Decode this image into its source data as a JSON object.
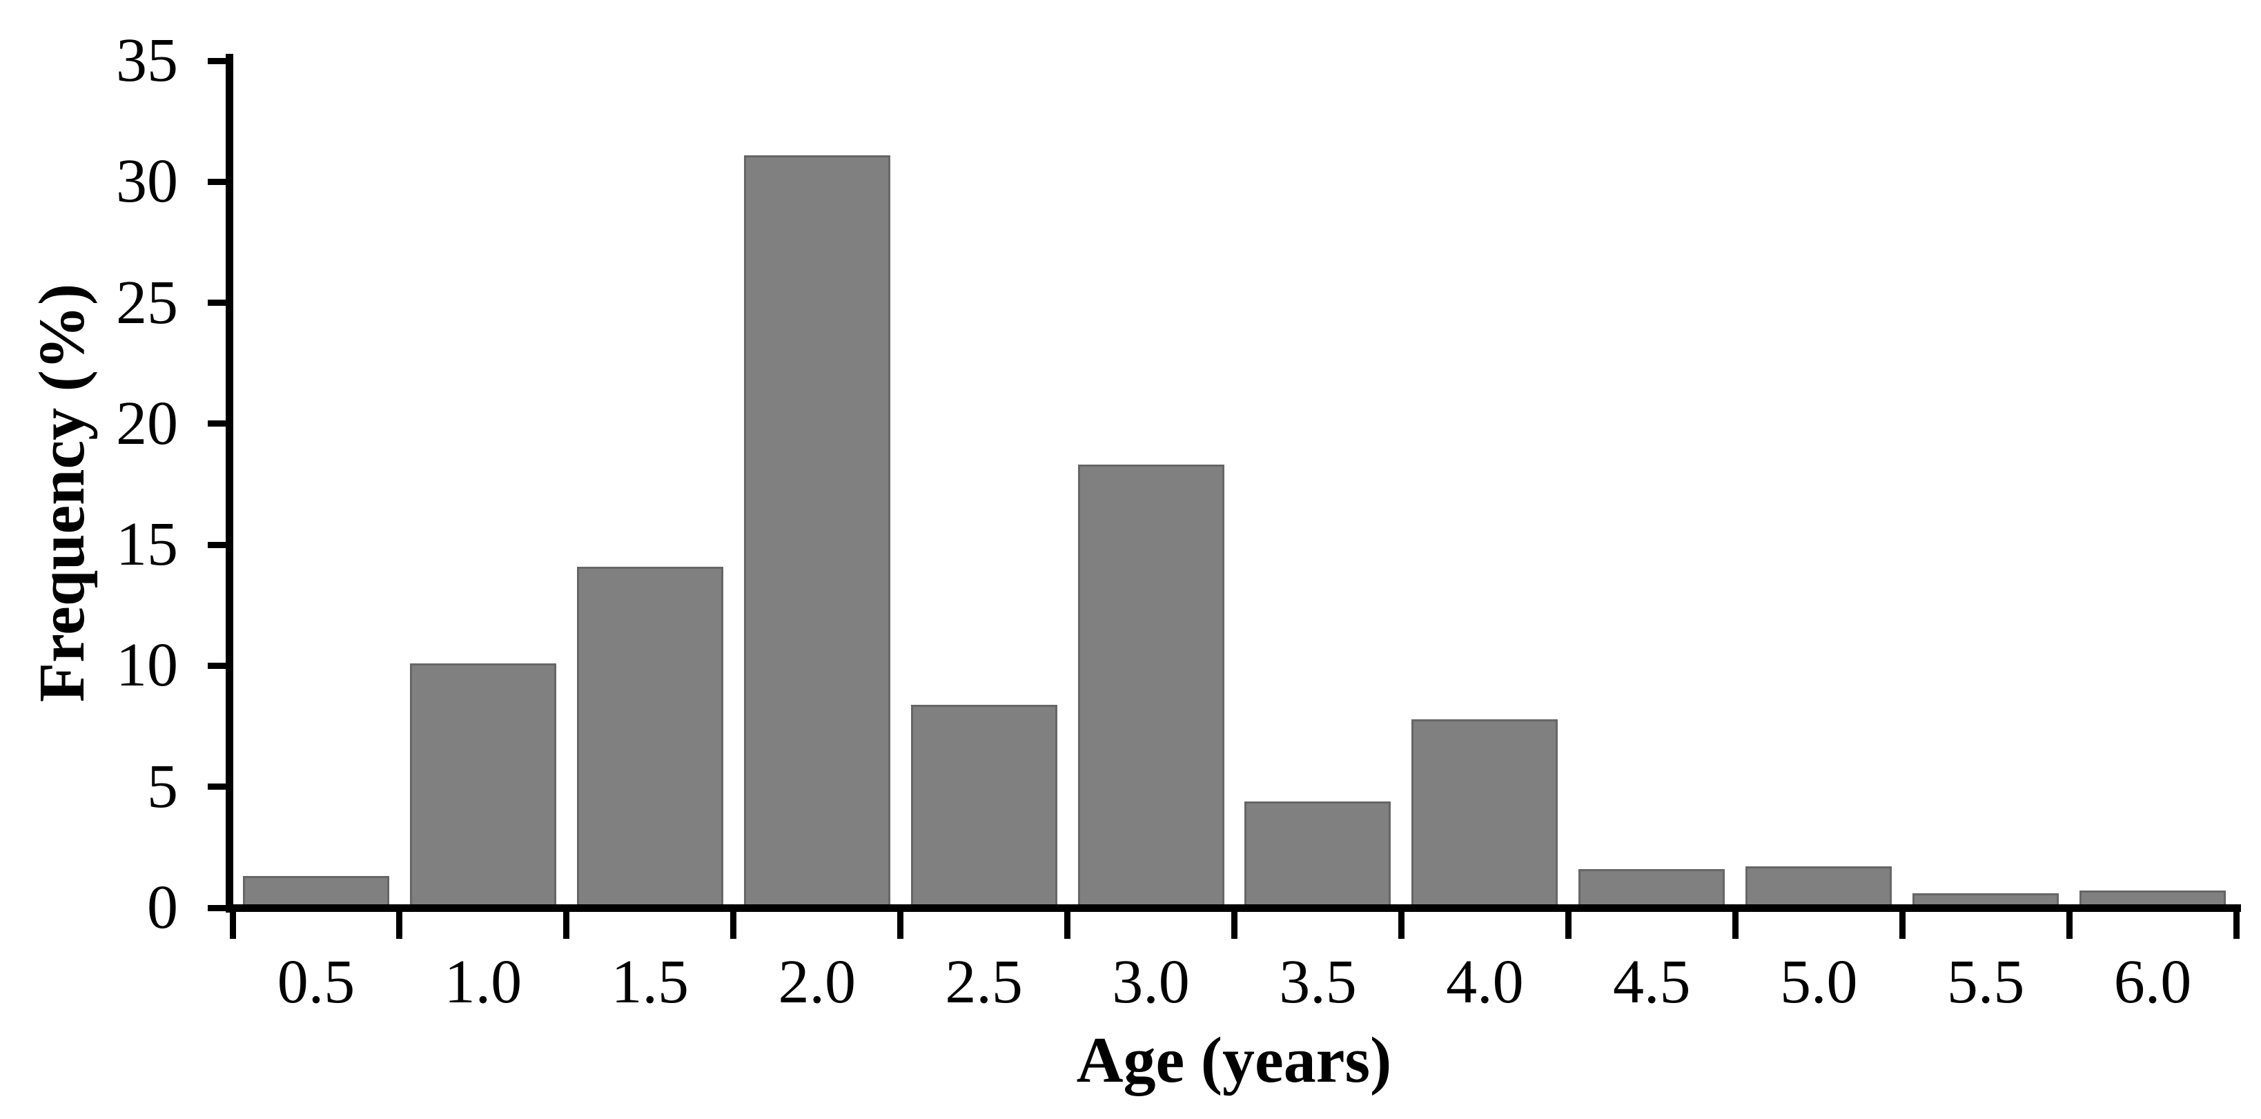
{
  "chart_data": {
    "type": "bar",
    "title": "",
    "xlabel": "Age (years)",
    "ylabel": "Frequency (%)",
    "categories": [
      "0.5",
      "1.0",
      "1.5",
      "2.0",
      "2.5",
      "3.0",
      "3.5",
      "4.0",
      "4.5",
      "5.0",
      "5.5",
      "6.0"
    ],
    "values": [
      1.3,
      10.1,
      14.1,
      31.1,
      8.4,
      18.3,
      4.4,
      7.8,
      1.6,
      1.7,
      0.6,
      0.7
    ],
    "ylim": [
      0,
      35
    ],
    "y_ticks": [
      0,
      5,
      10,
      15,
      20,
      25,
      30,
      35
    ],
    "bar_fill": "#808080",
    "bar_border": "#666666",
    "axis_color": "#000000",
    "grid": "off",
    "legend": "none"
  }
}
